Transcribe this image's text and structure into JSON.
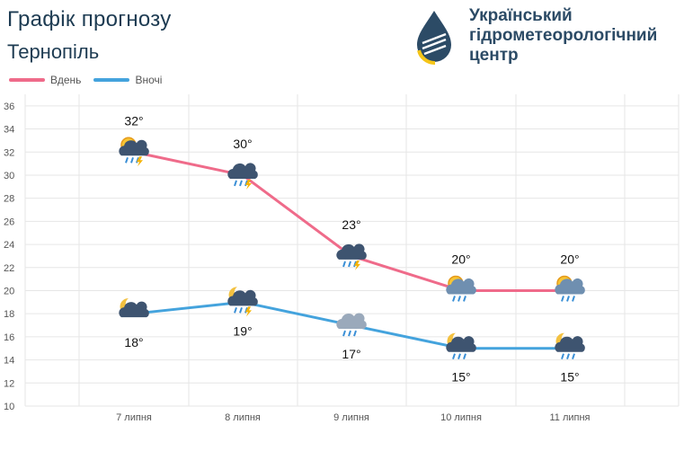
{
  "header": {
    "title": "Графік прогнозу",
    "city": "Тернопіль",
    "org_line1": "Український",
    "org_line2": "гідрометеорологічний",
    "org_line3": "центр"
  },
  "colors": {
    "day": "#ef6b8a",
    "night": "#44a3dd",
    "grid": "#e6e6e6",
    "title": "#1d3b52"
  },
  "chart_data": {
    "type": "line",
    "categories": [
      "7 липня",
      "8 липня",
      "9 липня",
      "10 липня",
      "11 липня"
    ],
    "series": [
      {
        "name": "Вдень",
        "values": [
          32,
          30,
          23,
          20,
          20
        ],
        "labels": [
          "32°",
          "30°",
          "23°",
          "20°",
          "20°"
        ],
        "icons": [
          "sun-cloud-rain-thunder-icon",
          "cloud-rain-thunder-icon",
          "cloud-rain-thunder-icon",
          "sun-cloud-rain-icon",
          "sun-cloud-rain-icon"
        ]
      },
      {
        "name": "Вночі",
        "values": [
          18,
          19,
          17,
          15,
          15
        ],
        "labels": [
          "18°",
          "19°",
          "17°",
          "15°",
          "15°"
        ],
        "icons": [
          "moon-cloud-icon",
          "moon-cloud-rain-thunder-icon",
          "overcast-rain-icon",
          "moon-cloud-rain-icon",
          "moon-cloud-rain-icon"
        ]
      }
    ],
    "y_ticks": [
      "10",
      "12",
      "14",
      "16",
      "18",
      "20",
      "22",
      "24",
      "26",
      "28",
      "30",
      "32",
      "34",
      "36"
    ],
    "ylim": [
      10,
      37
    ],
    "grid": true,
    "legend_position": "top-left"
  }
}
